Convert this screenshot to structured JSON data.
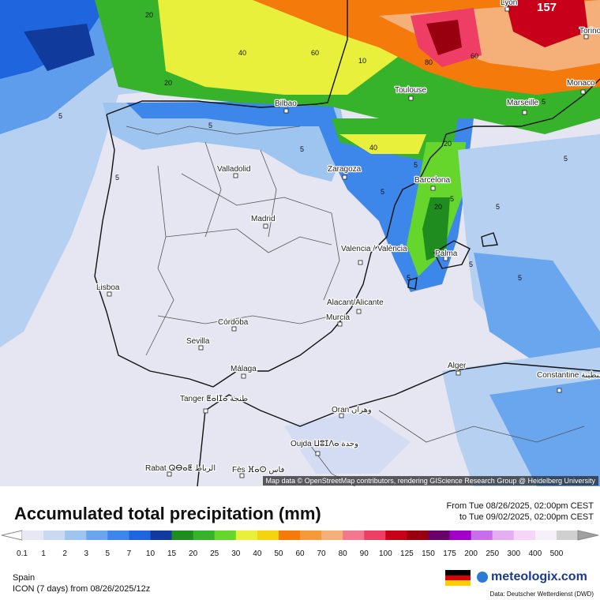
{
  "map": {
    "attribution": "Map data © OpenStreetMap contributors, rendering GIScience Research Group @ Heidelberg University",
    "max_value": "157",
    "cities": [
      {
        "name": "Lyon"
      },
      {
        "name": "Torino"
      },
      {
        "name": "Bilbao"
      },
      {
        "name": "Toulouse"
      },
      {
        "name": "Marseille"
      },
      {
        "name": "Monaco"
      },
      {
        "name": "Valladolid"
      },
      {
        "name": "Zaragoza"
      },
      {
        "name": "Barcelona"
      },
      {
        "name": "Madrid"
      },
      {
        "name": "Valencia / València"
      },
      {
        "name": "Palma"
      },
      {
        "name": "Lisboa"
      },
      {
        "name": "Alacant/Alicante"
      },
      {
        "name": "Murcia"
      },
      {
        "name": "Córdoba"
      },
      {
        "name": "Sevilla"
      },
      {
        "name": "Málaga"
      },
      {
        "name": "Alger"
      },
      {
        "name": "Constantine قسنطينة"
      },
      {
        "name": "Tanger ⵟⴰⵏⵊⴰ طنجة"
      },
      {
        "name": "Oran وهران"
      },
      {
        "name": "Oujda ⵡⵓⵊⴷⴰ وجدة"
      },
      {
        "name": "Rabat ⵕⴱⴰⵟ الرباط"
      },
      {
        "name": "Fès ⴼⴰⵙ فاس"
      }
    ],
    "contour_labels": [
      "20",
      "40",
      "60",
      "80",
      "157",
      "5",
      "10",
      "20",
      "40",
      "60",
      "5",
      "5",
      "5",
      "5",
      "5",
      "5",
      "20",
      "20",
      "5",
      "5",
      "5",
      "5",
      "5",
      "5"
    ]
  },
  "panel": {
    "title": "Accumulated total precipitation (mm)",
    "period_from": "From Tue 08/26/2025, 02:00pm CEST",
    "period_to": "to Tue 09/02/2025, 02:00pm CEST",
    "region": "Spain",
    "model": "ICON (7 days) from 08/26/2025/12z",
    "brand": "meteologix.com",
    "source": "Data: Deutscher Wetterdienst (DWD)"
  },
  "legend": {
    "levels": [
      "0.1",
      "1",
      "2",
      "3",
      "5",
      "7",
      "10",
      "15",
      "20",
      "25",
      "30",
      "40",
      "50",
      "60",
      "70",
      "80",
      "90",
      "100",
      "125",
      "150",
      "175",
      "200",
      "250",
      "300",
      "400",
      "500"
    ],
    "colors": [
      "#e8e8f4",
      "#c9d9f2",
      "#9ec4f0",
      "#6aa6ee",
      "#3d86ea",
      "#1f66de",
      "#103a9c",
      "#1e8c1e",
      "#36b32a",
      "#66d62c",
      "#e8f03c",
      "#f5d312",
      "#f57a0c",
      "#f59a3a",
      "#f5b07a",
      "#f27890",
      "#ef3e66",
      "#c8001a",
      "#980010",
      "#6a006a",
      "#a000c8",
      "#c86ee8",
      "#e6aef2",
      "#f5d6f8",
      "#f6f0fa",
      "#d0d0d0"
    ]
  }
}
